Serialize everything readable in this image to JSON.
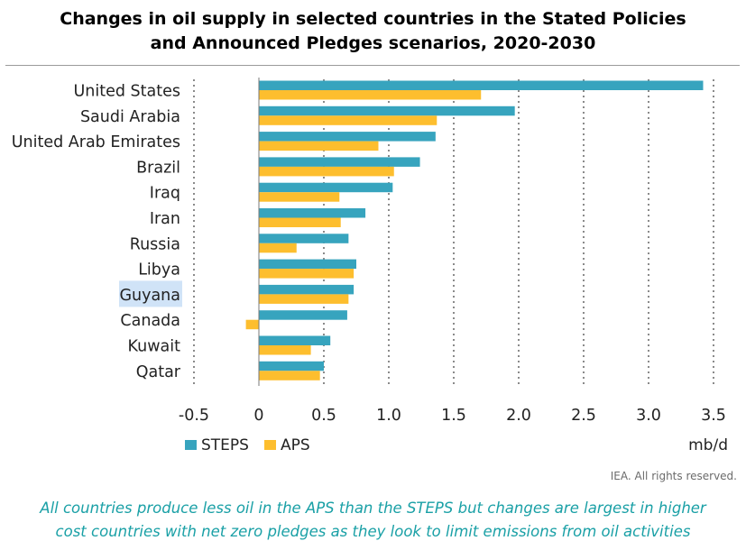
{
  "title_line1": "Changes in oil supply in selected countries in the Stated Policies",
  "title_line2": "and Announced Pledges scenarios, 2020-2030",
  "credit": "IEA. All rights reserved.",
  "caption_line1": "All countries produce less oil in the APS than the STEPS but changes are largest in higher",
  "caption_line2": "cost countries with net zero pledges as they look to limit emissions from oil activities",
  "colors": {
    "steps": "#37a4be",
    "aps": "#fdbe2e",
    "highlight": "#d0e3f7",
    "caption": "#1aa0a6"
  },
  "chart_data": {
    "type": "bar",
    "orientation": "horizontal",
    "categories": [
      "United States",
      "Saudi Arabia",
      "United Arab Emirates",
      "Brazil",
      "Iraq",
      "Iran",
      "Russia",
      "Libya",
      "Guyana",
      "Canada",
      "Kuwait",
      "Qatar"
    ],
    "highlighted_category": "Guyana",
    "series": [
      {
        "name": "STEPS",
        "values": [
          3.42,
          1.97,
          1.36,
          1.24,
          1.03,
          0.82,
          0.69,
          0.75,
          0.73,
          0.68,
          0.55,
          0.5
        ]
      },
      {
        "name": "APS",
        "values": [
          1.71,
          1.37,
          0.92,
          1.04,
          0.62,
          0.63,
          0.29,
          0.73,
          0.69,
          -0.1,
          0.4,
          0.47
        ]
      }
    ],
    "xlim": [
      -0.5,
      3.5
    ],
    "xticks": [
      "-0.5",
      "0",
      "0.5",
      "1.0",
      "1.5",
      "2.0",
      "2.5",
      "3.0",
      "3.5"
    ],
    "xunit": "mb/d",
    "grid": "vertical dashed",
    "legend": "bottom-left"
  }
}
